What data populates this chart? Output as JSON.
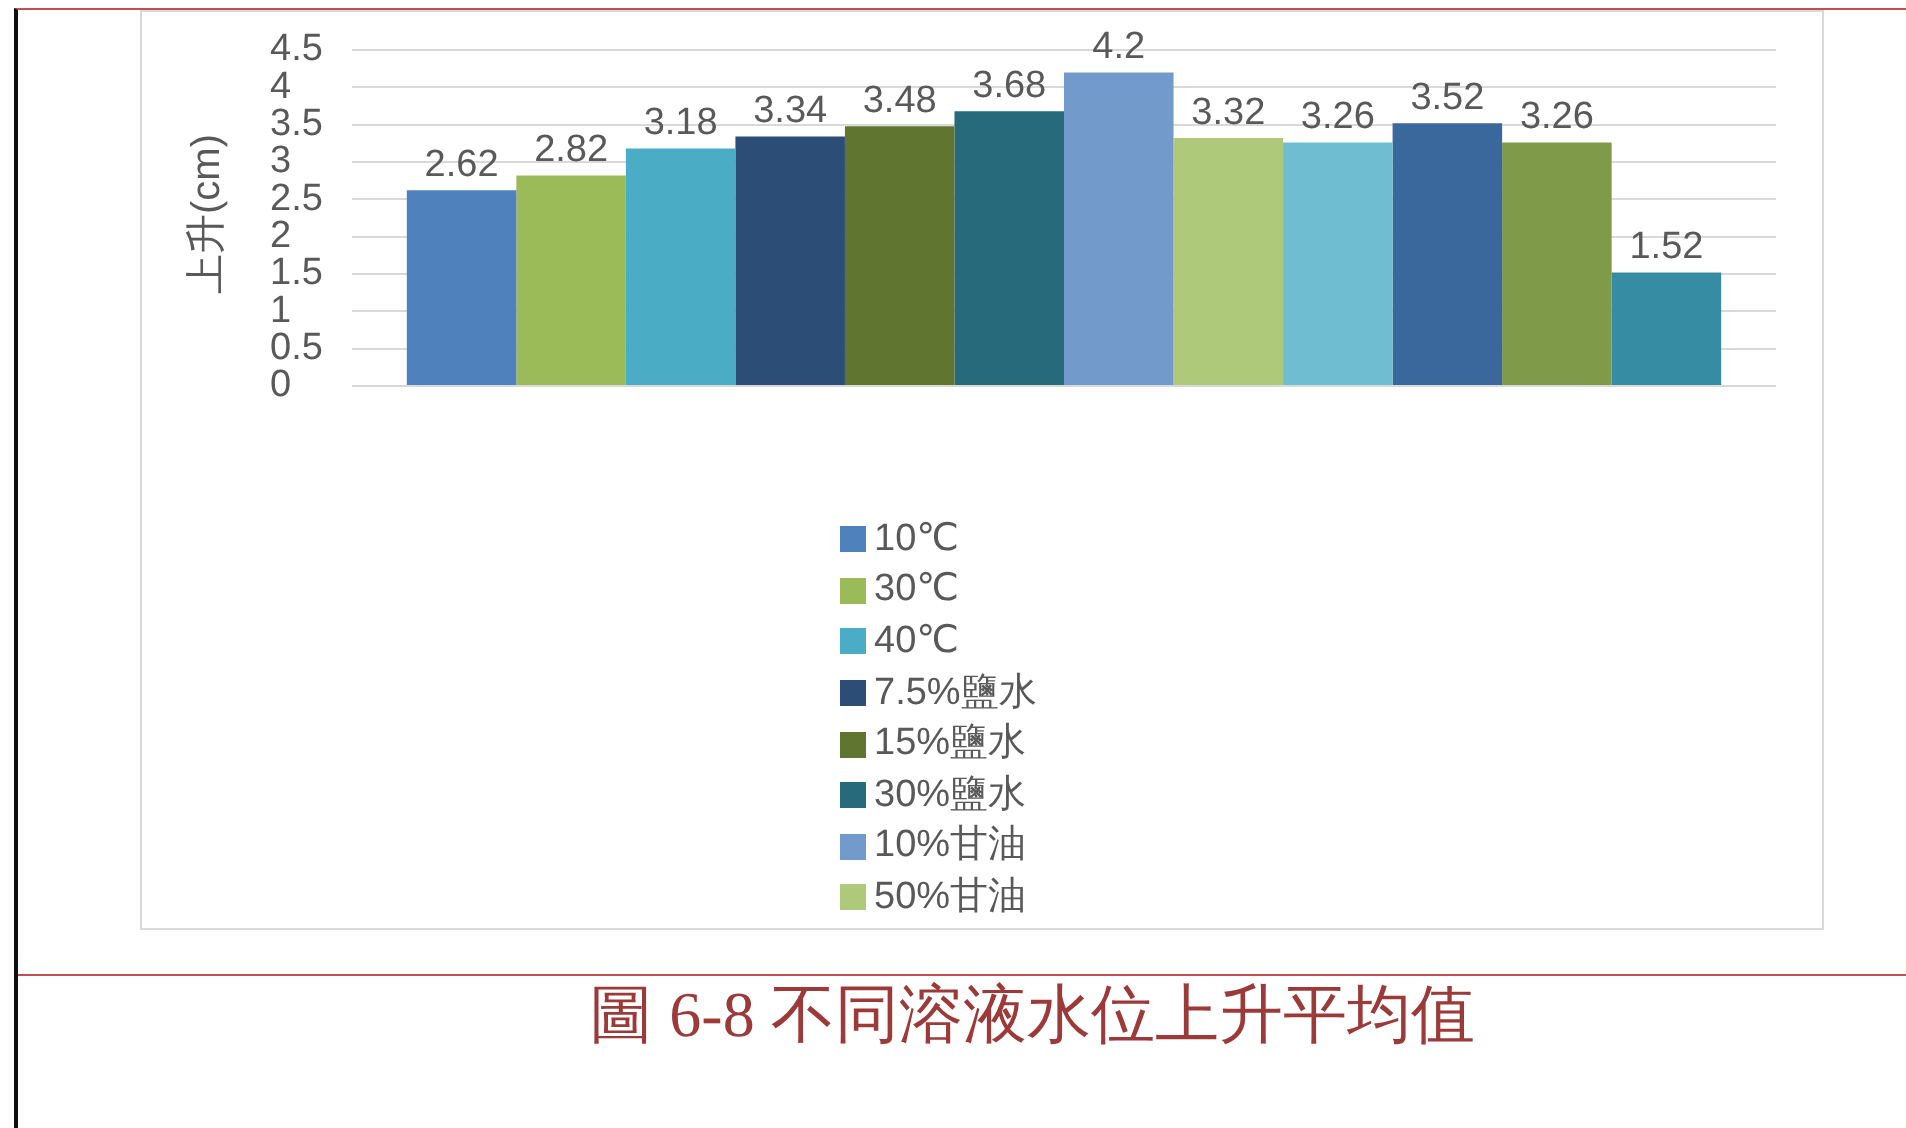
{
  "chart_data": {
    "type": "bar",
    "categories": [
      null
    ],
    "ylabel": "上升(cm)",
    "ylim": [
      0,
      4.5
    ],
    "yticks": [
      0,
      0.5,
      1,
      1.5,
      2,
      2.5,
      3,
      3.5,
      4,
      4.5
    ],
    "grid": "y",
    "legend": "bottom",
    "data_labels": true,
    "tick_labels": "y",
    "annotations": [
      "圖 6-8 不同溶液水位上升平均值"
    ],
    "series": [
      {
        "name": "10℃",
        "color": "#4f81bd",
        "values": [
          2.62
        ]
      },
      {
        "name": "30℃",
        "color": "#9bbb59",
        "values": [
          2.82
        ]
      },
      {
        "name": "40℃",
        "color": "#4bacc6",
        "values": [
          3.18
        ]
      },
      {
        "name": "7.5%鹽水",
        "color": "#2c4d75",
        "values": [
          3.34
        ]
      },
      {
        "name": "15%鹽水",
        "color": "#5f7530",
        "values": [
          3.48
        ]
      },
      {
        "name": "30%鹽水",
        "color": "#276a7c",
        "values": [
          3.68
        ]
      },
      {
        "name": "10%甘油",
        "color": "#729aca",
        "values": [
          4.2
        ]
      },
      {
        "name": "50%甘油",
        "color": "#afc97a",
        "values": [
          3.32
        ]
      },
      {
        "color": "#6fbdd1",
        "values": [
          3.26
        ]
      },
      {
        "color": "#3a679c",
        "values": [
          3.52
        ]
      },
      {
        "color": "#7f9a48",
        "values": [
          3.26
        ]
      },
      {
        "color": "#358ca3",
        "values": [
          1.52
        ]
      }
    ]
  }
}
